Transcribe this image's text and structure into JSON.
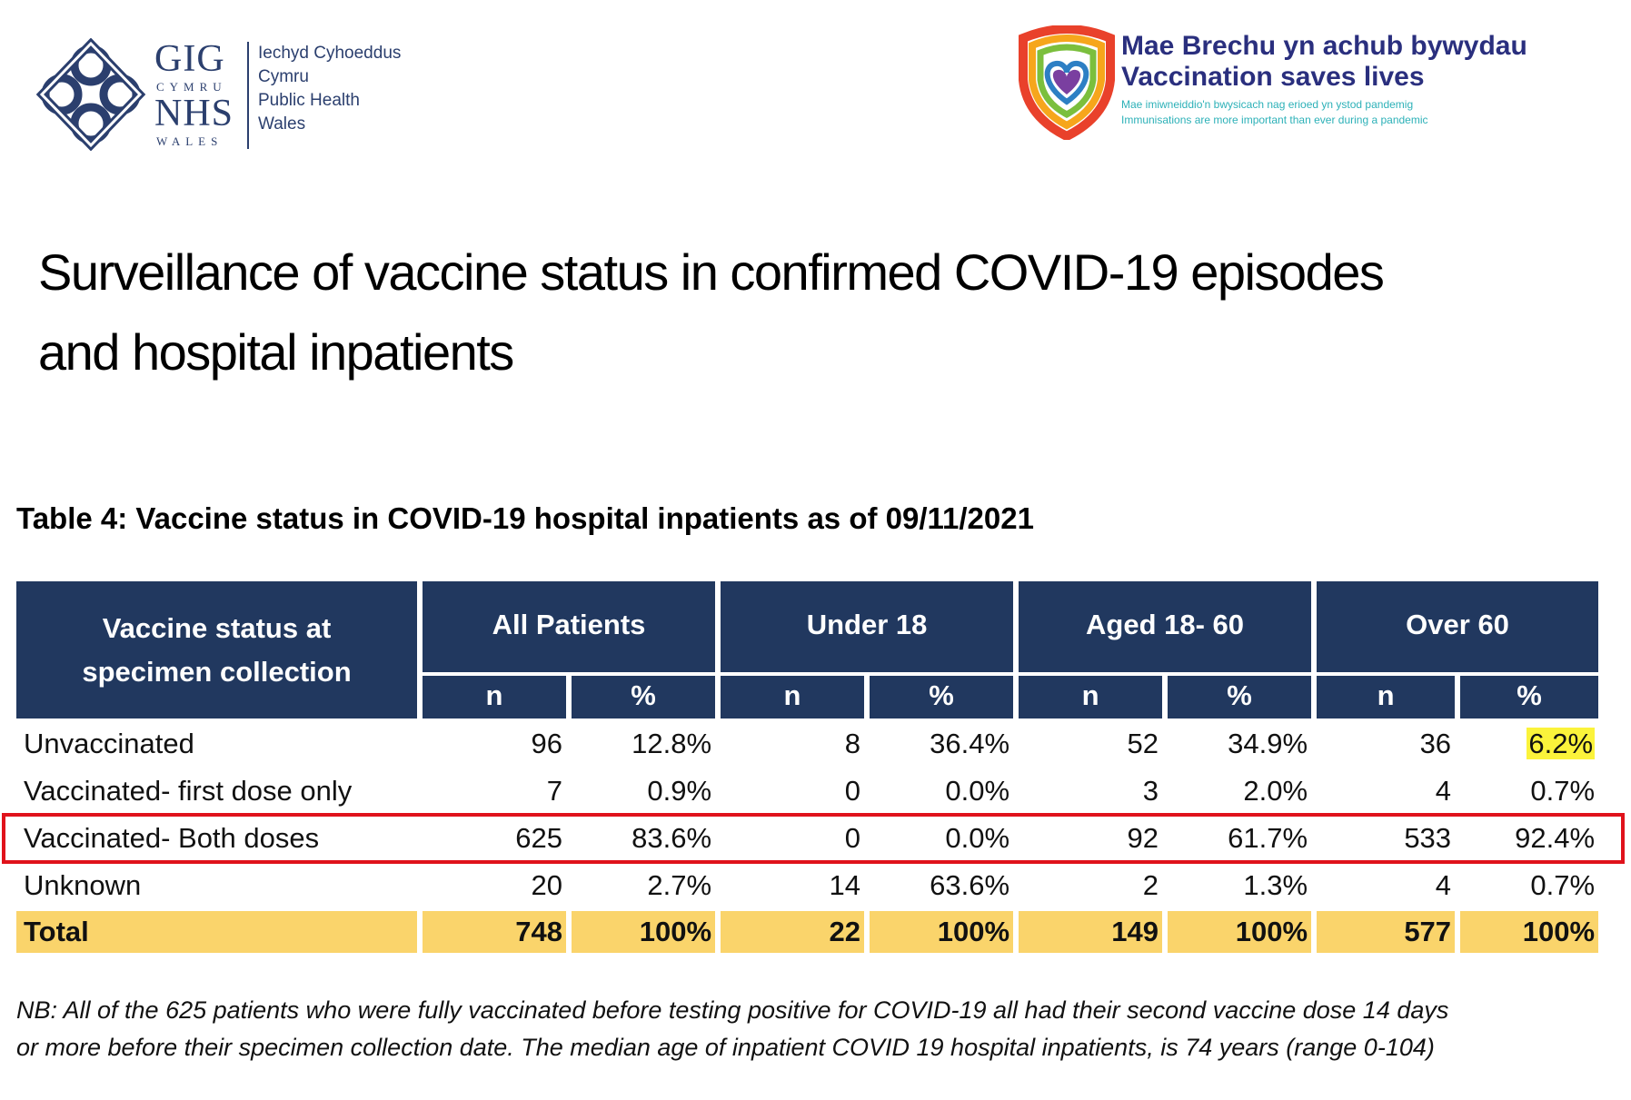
{
  "header": {
    "nhs_logo": {
      "gig": "GIG",
      "cymru": "CYMRU",
      "nhs": "NHS",
      "wales": "WALES",
      "org_lines": [
        "Iechyd Cyhoeddus",
        "Cymru",
        "Public Health",
        "Wales"
      ],
      "color": "#2b3f6e"
    },
    "vaccination_logo": {
      "line1": "Mae Brechu yn achub bywydau",
      "line2": "Vaccination saves lives",
      "sub1": "Mae imiwneiddio'n bwysicach nag erioed yn ystod pandemig",
      "sub2": "Immunisations are more important than ever during a pandemic",
      "icon": "rainbow-heart-shield-icon"
    }
  },
  "title": {
    "line1": "Surveillance of vaccine status in confirmed COVID-19 episodes",
    "line2": "and hospital inpatients"
  },
  "table": {
    "caption": "Table 4: Vaccine status in COVID-19 hospital inpatients as of 09/11/2021",
    "status_header_line1": "Vaccine status at",
    "status_header_line2": "specimen collection",
    "groups": [
      "All Patients",
      "Under 18",
      "Aged 18- 60",
      "Over 60"
    ],
    "sub_headers": [
      "n",
      "%"
    ],
    "rows": [
      {
        "label": "Unvaccinated",
        "values": [
          "96",
          "12.8%",
          "8",
          "36.4%",
          "52",
          "34.9%",
          "36",
          "6.2%"
        ]
      },
      {
        "label": "Vaccinated- first dose only",
        "values": [
          "7",
          "0.9%",
          "0",
          "0.0%",
          "3",
          "2.0%",
          "4",
          "0.7%"
        ]
      },
      {
        "label": "Vaccinated- Both doses",
        "values": [
          "625",
          "83.6%",
          "0",
          "0.0%",
          "92",
          "61.7%",
          "533",
          "92.4%"
        ]
      },
      {
        "label": "Unknown",
        "values": [
          "20",
          "2.7%",
          "14",
          "63.6%",
          "2",
          "1.3%",
          "4",
          "0.7%"
        ]
      }
    ],
    "total": {
      "label": "Total",
      "values": [
        "748",
        "100%",
        "22",
        "100%",
        "149",
        "100%",
        "577",
        "100%"
      ]
    },
    "colors": {
      "header_bg": "#21385f",
      "total_bg": "#fad46b",
      "cell_highlight": "#fbf33b",
      "row_box": "#e0121b"
    }
  },
  "footnote": {
    "line1": "NB: All of the 625 patients who were fully vaccinated before testing positive for COVID-19 all had their second vaccine dose 14 days",
    "line2": "or more before their specimen collection date. The median age of inpatient COVID 19 hospital inpatients, is 74 years (range 0-104)"
  }
}
